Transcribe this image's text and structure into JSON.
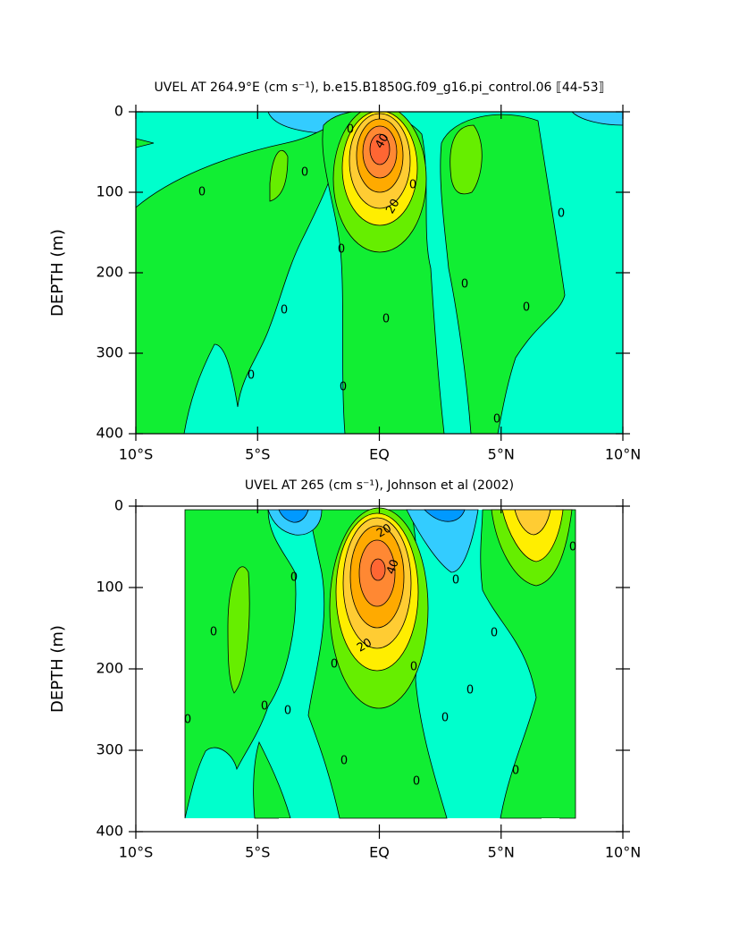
{
  "chart_data": [
    {
      "type": "contour",
      "title": "UVEL AT 264.9°E (cm s⁻¹), b.e15.B1850G.f09_g16.pi_control.06 ⟦44-53⟧",
      "ylabel": "DEPTH (m)",
      "xlim": [
        -10,
        10
      ],
      "xticks": [
        {
          "value": -10,
          "label": "10°S"
        },
        {
          "value": -5,
          "label": "5°S"
        },
        {
          "value": 0,
          "label": "EQ"
        },
        {
          "value": 5,
          "label": "5°N"
        },
        {
          "value": 10,
          "label": "10°N"
        }
      ],
      "ylim": [
        400,
        0
      ],
      "yticks": [
        0,
        100,
        200,
        300,
        400
      ],
      "contour_labels": [
        0,
        0,
        0,
        0,
        0,
        0,
        0,
        0,
        0,
        0,
        0,
        0,
        0,
        40,
        20
      ]
    },
    {
      "type": "contour",
      "title": "UVEL AT 265 (cm s⁻¹), Johnson et al (2002)",
      "ylabel": "DEPTH (m)",
      "xlim": [
        -10,
        10
      ],
      "xticks": [
        {
          "value": -10,
          "label": "10°S"
        },
        {
          "value": -5,
          "label": "5°S"
        },
        {
          "value": 0,
          "label": "EQ"
        },
        {
          "value": 5,
          "label": "5°N"
        },
        {
          "value": 10,
          "label": "10°N"
        }
      ],
      "ylim": [
        400,
        0
      ],
      "yticks": [
        0,
        100,
        200,
        300,
        400
      ],
      "contour_labels": [
        0,
        0,
        0,
        0,
        0,
        0,
        0,
        0,
        0,
        0,
        0,
        0,
        0,
        0,
        0,
        20,
        40,
        20
      ]
    }
  ]
}
